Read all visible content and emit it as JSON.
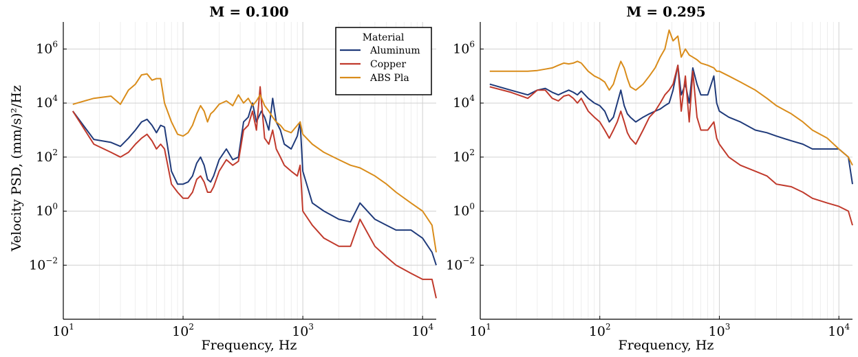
{
  "chart_data": [
    {
      "type": "line",
      "title": "M = 0.100",
      "xlabel": "Frequency, Hz",
      "ylabel": "Velocity PSD, (mm/s)²/Hz",
      "xscale": "log",
      "yscale": "log",
      "xlim": [
        10,
        13000
      ],
      "ylim": [
        0.0001,
        10000000
      ],
      "xticks": [
        {
          "base": "10",
          "exp": "1",
          "value": 10
        },
        {
          "base": "10",
          "exp": "2",
          "value": 100
        },
        {
          "base": "10",
          "exp": "3",
          "value": 1000
        },
        {
          "base": "10",
          "exp": "4",
          "value": 10000
        }
      ],
      "yticks": [
        {
          "base": "10",
          "exp": "−2",
          "value": 0.01
        },
        {
          "base": "10",
          "exp": "0",
          "value": 1
        },
        {
          "base": "10",
          "exp": "2",
          "value": 100
        },
        {
          "base": "10",
          "exp": "4",
          "value": 10000
        },
        {
          "base": "10",
          "exp": "6",
          "value": 1000000
        }
      ],
      "grid": true,
      "legend": {
        "title": "Material",
        "placement": "top-right"
      },
      "series": [
        {
          "name": "Aluminum",
          "color": "#1f3a7a",
          "x": [
            12,
            18,
            25,
            30,
            35,
            40,
            45,
            50,
            55,
            60,
            65,
            70,
            80,
            90,
            100,
            110,
            120,
            130,
            140,
            150,
            160,
            170,
            180,
            200,
            230,
            260,
            290,
            320,
            350,
            380,
            410,
            450,
            480,
            520,
            560,
            600,
            650,
            700,
            800,
            900,
            950,
            1000,
            1200,
            1500,
            2000,
            2500,
            3000,
            4000,
            5000,
            6000,
            8000,
            10000,
            12000,
            13000
          ],
          "y": [
            5000,
            450,
            350,
            250,
            500,
            1000,
            2000,
            2500,
            1500,
            800,
            1500,
            1300,
            30,
            10,
            10,
            12,
            20,
            60,
            100,
            50,
            15,
            12,
            20,
            80,
            200,
            80,
            100,
            2000,
            3000,
            10000,
            2000,
            5000,
            3000,
            1000,
            15000,
            2000,
            1000,
            300,
            200,
            600,
            2000,
            30,
            2,
            1,
            0.5,
            0.4,
            2,
            0.5,
            0.3,
            0.2,
            0.2,
            0.1,
            0.03,
            0.01
          ]
        },
        {
          "name": "Copper",
          "color": "#c0392b",
          "x": [
            12,
            18,
            25,
            30,
            35,
            40,
            45,
            50,
            55,
            60,
            65,
            70,
            80,
            90,
            100,
            110,
            120,
            130,
            140,
            150,
            160,
            170,
            180,
            200,
            230,
            260,
            290,
            320,
            350,
            380,
            410,
            440,
            480,
            520,
            560,
            600,
            650,
            700,
            800,
            900,
            950,
            1000,
            1200,
            1500,
            2000,
            2500,
            3000,
            4000,
            5000,
            6000,
            8000,
            10000,
            12000,
            13000
          ],
          "y": [
            5000,
            300,
            150,
            100,
            150,
            300,
            500,
            700,
            400,
            200,
            300,
            200,
            10,
            5,
            3,
            3,
            5,
            15,
            20,
            12,
            5,
            5,
            8,
            30,
            80,
            50,
            70,
            1000,
            1500,
            5000,
            1000,
            40000,
            500,
            300,
            1000,
            200,
            100,
            50,
            30,
            20,
            50,
            1,
            0.3,
            0.1,
            0.05,
            0.05,
            0.5,
            0.05,
            0.02,
            0.01,
            0.005,
            0.003,
            0.003,
            0.0006
          ]
        },
        {
          "name": "ABS Pla",
          "color": "#d98c1a",
          "x": [
            12,
            18,
            25,
            30,
            35,
            40,
            45,
            50,
            55,
            60,
            65,
            70,
            80,
            90,
            100,
            110,
            120,
            130,
            140,
            150,
            160,
            170,
            180,
            200,
            230,
            260,
            290,
            320,
            350,
            380,
            410,
            440,
            480,
            520,
            560,
            600,
            650,
            700,
            800,
            900,
            950,
            1000,
            1200,
            1500,
            2000,
            2500,
            3000,
            4000,
            5000,
            6000,
            8000,
            10000,
            12000,
            13000
          ],
          "y": [
            9000,
            15000,
            18000,
            9000,
            30000,
            50000,
            110000,
            120000,
            70000,
            80000,
            80000,
            10000,
            2000,
            700,
            600,
            800,
            1500,
            4000,
            8000,
            5000,
            2000,
            4000,
            5000,
            9000,
            12000,
            8000,
            20000,
            10000,
            15000,
            8000,
            12000,
            20000,
            8000,
            5000,
            3000,
            2000,
            1500,
            1000,
            800,
            1500,
            2000,
            700,
            300,
            150,
            80,
            50,
            40,
            20,
            10,
            5,
            2,
            1,
            0.3,
            0.03
          ]
        }
      ]
    },
    {
      "type": "line",
      "title": "M = 0.295",
      "xlabel": "Frequency, Hz",
      "ylabel": "",
      "xscale": "log",
      "yscale": "log",
      "xlim": [
        10,
        13000
      ],
      "ylim": [
        0.0001,
        10000000
      ],
      "xticks": [
        {
          "base": "10",
          "exp": "1",
          "value": 10
        },
        {
          "base": "10",
          "exp": "2",
          "value": 100
        },
        {
          "base": "10",
          "exp": "3",
          "value": 1000
        },
        {
          "base": "10",
          "exp": "4",
          "value": 10000
        }
      ],
      "yticks": [
        {
          "base": "10",
          "exp": "−2",
          "value": 0.01
        },
        {
          "base": "10",
          "exp": "0",
          "value": 1
        },
        {
          "base": "10",
          "exp": "2",
          "value": 100
        },
        {
          "base": "10",
          "exp": "4",
          "value": 10000
        },
        {
          "base": "10",
          "exp": "6",
          "value": 1000000
        }
      ],
      "grid": true,
      "series": [
        {
          "name": "Aluminum",
          "color": "#1f3a7a",
          "x": [
            12,
            18,
            25,
            30,
            35,
            40,
            45,
            50,
            55,
            60,
            65,
            70,
            80,
            90,
            100,
            110,
            120,
            130,
            140,
            150,
            160,
            170,
            180,
            200,
            230,
            260,
            290,
            320,
            350,
            380,
            410,
            450,
            480,
            520,
            560,
            600,
            650,
            700,
            800,
            900,
            950,
            1000,
            1200,
            1500,
            2000,
            2500,
            3000,
            4000,
            5000,
            6000,
            8000,
            10000,
            12000,
            13000
          ],
          "y": [
            50000,
            30000,
            20000,
            30000,
            35000,
            25000,
            20000,
            25000,
            30000,
            25000,
            20000,
            28000,
            15000,
            10000,
            8000,
            5000,
            2000,
            3000,
            10000,
            30000,
            8000,
            4000,
            3000,
            2000,
            3000,
            4000,
            5000,
            6000,
            8000,
            10000,
            30000,
            250000,
            20000,
            50000,
            10000,
            200000,
            50000,
            20000,
            20000,
            100000,
            10000,
            5000,
            3000,
            2000,
            1000,
            800,
            600,
            400,
            300,
            200,
            200,
            200,
            100,
            10
          ]
        },
        {
          "name": "Copper",
          "color": "#c0392b",
          "x": [
            12,
            18,
            25,
            30,
            35,
            40,
            45,
            50,
            55,
            60,
            65,
            70,
            80,
            90,
            100,
            110,
            120,
            130,
            140,
            150,
            160,
            170,
            180,
            200,
            230,
            260,
            290,
            320,
            350,
            380,
            410,
            450,
            480,
            520,
            560,
            600,
            650,
            700,
            800,
            900,
            950,
            1000,
            1200,
            1500,
            2000,
            2500,
            3000,
            4000,
            5000,
            6000,
            8000,
            10000,
            12000,
            13000
          ],
          "y": [
            40000,
            25000,
            15000,
            30000,
            30000,
            15000,
            12000,
            18000,
            20000,
            15000,
            10000,
            15000,
            5000,
            3000,
            2000,
            1000,
            500,
            1000,
            2000,
            5000,
            2000,
            800,
            500,
            300,
            1000,
            3000,
            5000,
            10000,
            20000,
            30000,
            50000,
            250000,
            5000,
            100000,
            2000,
            150000,
            3000,
            1000,
            1000,
            2000,
            500,
            300,
            100,
            50,
            30,
            20,
            10,
            8,
            5,
            3,
            2,
            1.5,
            1,
            0.3
          ]
        },
        {
          "name": "ABS Pla",
          "color": "#d98c1a",
          "x": [
            12,
            18,
            25,
            30,
            35,
            40,
            45,
            50,
            55,
            60,
            65,
            70,
            80,
            90,
            100,
            110,
            120,
            130,
            140,
            150,
            160,
            170,
            180,
            200,
            230,
            260,
            290,
            320,
            350,
            380,
            410,
            450,
            480,
            520,
            560,
            600,
            650,
            700,
            800,
            900,
            950,
            1000,
            1200,
            1500,
            2000,
            2500,
            3000,
            4000,
            5000,
            6000,
            8000,
            10000,
            12000,
            13000
          ],
          "y": [
            150000,
            150000,
            150000,
            160000,
            180000,
            200000,
            250000,
            300000,
            280000,
            300000,
            350000,
            300000,
            150000,
            100000,
            80000,
            60000,
            30000,
            50000,
            150000,
            350000,
            200000,
            80000,
            40000,
            30000,
            50000,
            100000,
            200000,
            500000,
            1000000,
            5000000,
            2000000,
            3000000,
            500000,
            1000000,
            600000,
            500000,
            400000,
            300000,
            250000,
            200000,
            150000,
            150000,
            100000,
            60000,
            30000,
            15000,
            8000,
            4000,
            2000,
            1000,
            500,
            200,
            100,
            50
          ]
        }
      ]
    }
  ]
}
